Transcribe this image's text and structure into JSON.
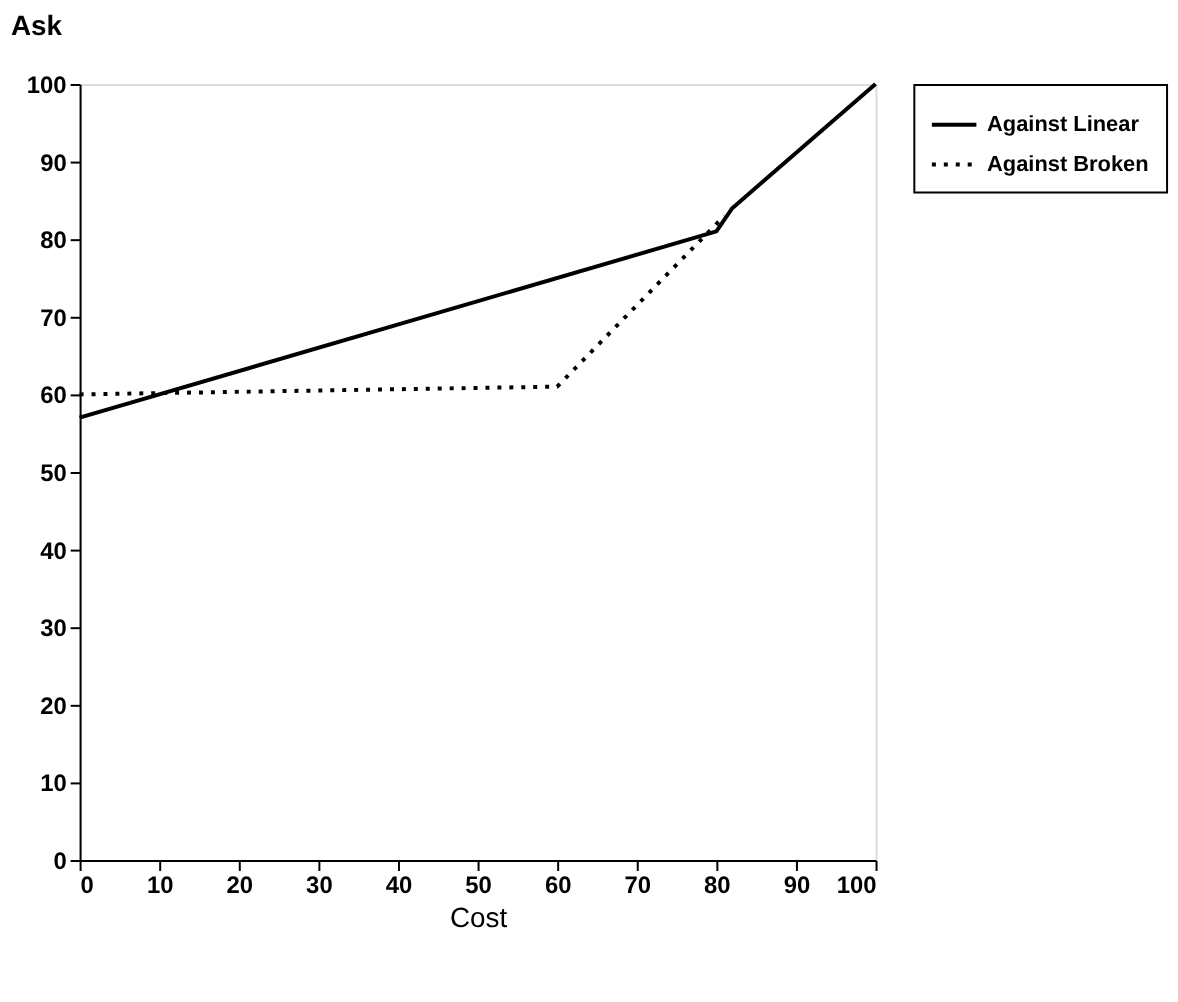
{
  "chart_data": {
    "type": "line",
    "xlabel": "Cost",
    "ylabel": "Ask",
    "xlim": [
      0,
      100
    ],
    "ylim": [
      0,
      100
    ],
    "xticks": [
      0,
      10,
      20,
      30,
      40,
      50,
      60,
      70,
      80,
      90,
      100
    ],
    "yticks": [
      0,
      10,
      20,
      30,
      40,
      50,
      60,
      70,
      80,
      90,
      100
    ],
    "grid": false,
    "legend": "right",
    "series": [
      {
        "name": "Against Linear",
        "color": "#000000",
        "line_style": "solid",
        "x": [
          0,
          80,
          82,
          100
        ],
        "values": [
          57,
          81,
          84,
          100
        ]
      },
      {
        "name": "Against Broken",
        "color": "#000000",
        "line_style": "dotted",
        "x": [
          0,
          60,
          81
        ],
        "values": [
          60,
          61,
          83
        ]
      }
    ]
  }
}
